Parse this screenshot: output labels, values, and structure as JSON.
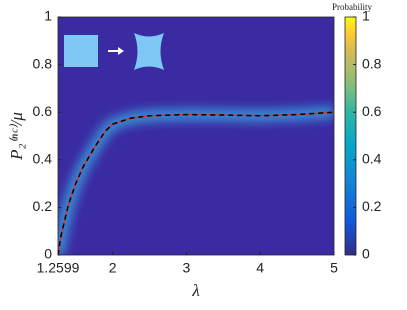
{
  "chart_data": {
    "type": "line",
    "xlabel": "λ",
    "ylabel": "P₂⁽ⁿᶜ⁾/μ",
    "x": [
      1.2599,
      1.3,
      1.4,
      1.5,
      1.6,
      1.75,
      1.9,
      2,
      2.25,
      2.5,
      3,
      3.5,
      4,
      4.5,
      5
    ],
    "values": [
      0,
      0.08,
      0.21,
      0.3,
      0.37,
      0.45,
      0.52,
      0.55,
      0.575,
      0.585,
      0.59,
      0.588,
      0.585,
      0.59,
      0.6
    ],
    "color": "#e0302c",
    "background": "#3b2ba3",
    "xlim": [
      1.2599,
      5
    ],
    "xticks": [
      {
        "value": 1.2599,
        "label": "1.2599"
      },
      2,
      3,
      4,
      5
    ],
    "ylim": [
      0,
      1
    ],
    "yticks": [
      0,
      0.2,
      0.4,
      0.6,
      0.8,
      1
    ],
    "colorbar": {
      "label": "Probability",
      "lim": [
        0,
        1
      ],
      "ticks": [
        0,
        0.2,
        0.4,
        0.6,
        0.8,
        1
      ]
    }
  }
}
